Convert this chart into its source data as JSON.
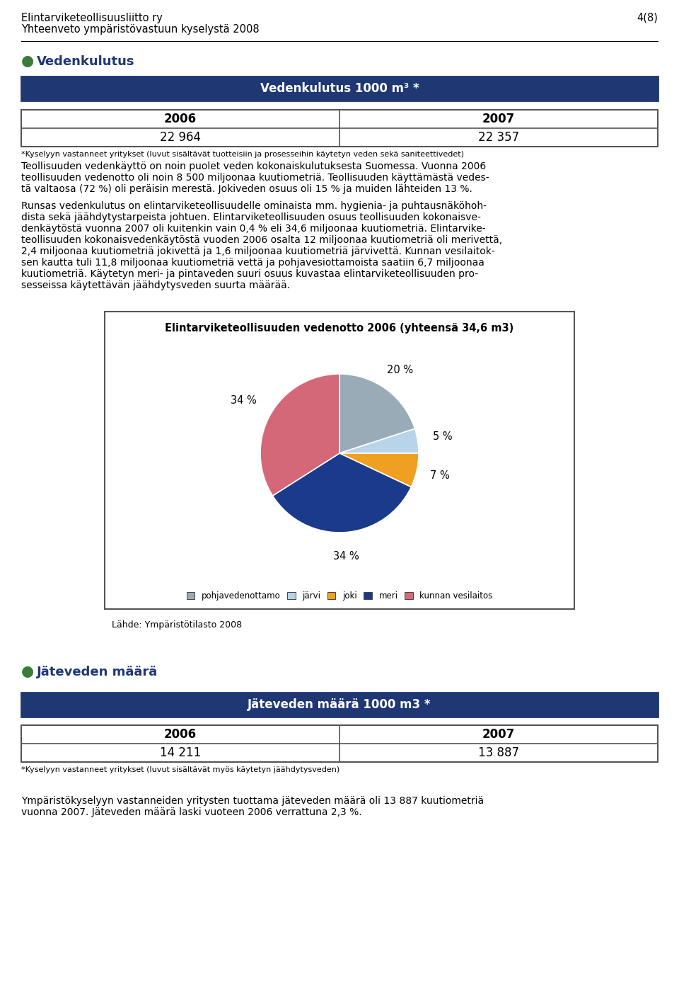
{
  "title_line1": "Elintarviketeollisuusliitto ry",
  "title_line2": "Yhteenveto ympäristövastuun kyselystä 2008",
  "page_num": "4(8)",
  "section1_bullet": "●",
  "section1_title": "Vedenkulutus",
  "table1_header": "Vedenkulutus 1000 m³ *",
  "table1_col1_header": "2006",
  "table1_col2_header": "2007",
  "table1_col1_val": "22 964",
  "table1_col2_val": "22 357",
  "table1_footnote": "*Kyselyyn vastanneet yritykset (luvut sisältävät tuotteisiin ja prosesseihin käytetyn veden sekä saniteettivedet)",
  "text1_lines": [
    "Teollisuuden vedenkäyttö on noin puolet veden kokonaiskulutuksesta Suomessa. Vuonna 2006",
    "teollisuuden vedenotto oli noin 8 500 miljoonaa kuutiometriä. Teollisuuden käyttämästä vedes-",
    "tä valtaosa (72 %) oli peräisin merestä. Jokiveden osuus oli 15 % ja muiden lähteiden 13 %."
  ],
  "text2_lines": [
    "Runsas vedenkulutus on elintarviketeollisuudelle ominaista mm. hygienia- ja puhtausnäköhoh-",
    "dista sekä jäähdytystarpeista johtuen. Elintarviketeollisuuden osuus teollisuuden kokonaisve-",
    "denkäytöstä vuonna 2007 oli kuitenkin vain 0,4 % eli 34,6 miljoonaa kuutiometriä. Elintarvike-",
    "teollisuuden kokonaisvedenkäytöstä vuoden 2006 osalta 12 miljoonaa kuutiometriä oli merivettä,",
    "2,4 miljoonaa kuutiometriä jokivettä ja 1,6 miljoonaa kuutiometriä järvivettä. Kunnan vesilaitok-",
    "sen kautta tuli 11,8 miljoonaa kuutiometriä vettä ja pohjavesiottamoista saatiin 6,7 miljoonaa",
    "kuutiometriä. Käytetyn meri- ja pintaveden suuri osuus kuvastaa elintarviketeollisuuden pro-",
    "sesseissa käytettävän jäähdytysveden suurta määrää."
  ],
  "pie_title": "Elintarviketeollisuuden vedenotto 2006 (yhteensä 34,6 m3)",
  "pie_slices": [
    20,
    5,
    7,
    34,
    34
  ],
  "pie_colors": [
    "#9aabb8",
    "#b8d4e8",
    "#f0a020",
    "#1a3a8c",
    "#d46878"
  ],
  "pie_legend_labels": [
    "pohjavedenottamo",
    "järvi",
    "joki",
    "meri",
    "kunnan vesilaitos"
  ],
  "pie_label_source": "Lähde: Ympäristötilasto 2008",
  "section2_bullet": "●",
  "section2_title": "Jäteveden määrä",
  "table2_header": "Jäteveden määrä 1000 m3 *",
  "table2_col1_header": "2006",
  "table2_col2_header": "2007",
  "table2_col1_val": "14 211",
  "table2_col2_val": "13 887",
  "table2_footnote": "*Kyselyyn vastanneet yritykset (luvut sisältävät myös käytetyn jäähdytysveden)",
  "text3_lines": [
    "Ympäristökyselyyn vastanneiden yritysten tuottama jäteveden määrä oli 13 887 kuutiometriä",
    "vuonna 2007. Jäteveden määrä laski vuoteen 2006 verrattuna 2,3 %."
  ],
  "bg_color": "#ffffff",
  "table_header_bg": "#1f3874",
  "table_header_text_color": "#ffffff",
  "table_border_color": "#1f3874",
  "data_table_border_color": "#555555",
  "section_title_color": "#1f3874",
  "bullet_color": "#3a7d3a",
  "pie_box_border": "#555555",
  "footnote_color": "#000000",
  "body_text_color": "#000000"
}
